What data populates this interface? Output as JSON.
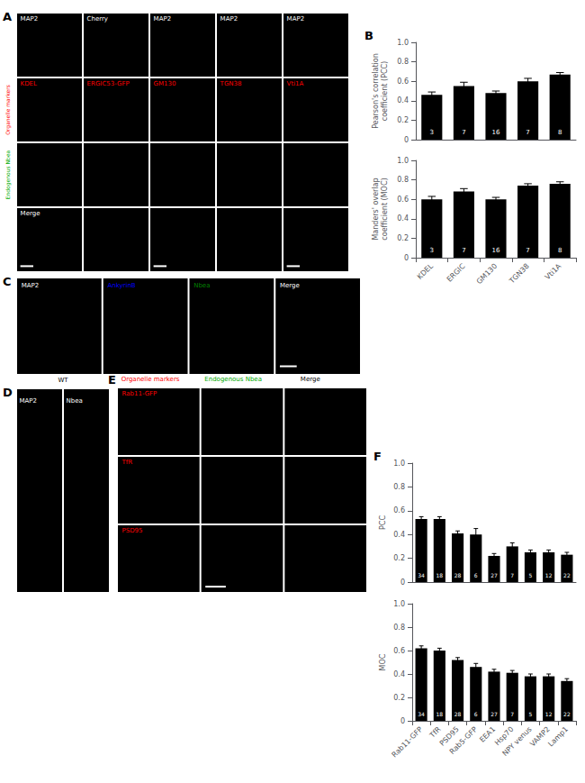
{
  "chart_data": [
    {
      "type": "image",
      "title": "A",
      "annotations": [
        {
          "text": "MAP2",
          "color": "white"
        },
        {
          "text": "Cherry",
          "color": "white"
        },
        {
          "text": "MAP2",
          "color": "white"
        },
        {
          "text": "MAP2",
          "color": "white"
        },
        {
          "text": "MAP2",
          "color": "white"
        },
        {
          "text": "KDEL",
          "color": "red"
        },
        {
          "text": "ERGIC53-GFP",
          "color": "red"
        },
        {
          "text": "GM130",
          "color": "red"
        },
        {
          "text": "TGN38",
          "color": "red"
        },
        {
          "text": "Vti1A",
          "color": "red"
        },
        {
          "text": "Merge",
          "color": "white"
        },
        {
          "text": "Organelle markers",
          "color": "red"
        },
        {
          "text": "Endogenous Nbea",
          "color": "#00aa00"
        }
      ]
    },
    {
      "type": "bar",
      "title": "B",
      "categories": [
        "KDEL",
        "ERGIC",
        "GM130",
        "TGN38",
        "Vti1A"
      ],
      "values": [
        0.46,
        0.55,
        0.48,
        0.6,
        0.67
      ],
      "errors": [
        0.03,
        0.04,
        0.02,
        0.03,
        0.02
      ],
      "n": [
        3,
        7,
        16,
        7,
        8
      ],
      "ylabel": "Pearson's correlation\ncoefficient (PCC)",
      "ylim": [
        0,
        1.0
      ],
      "yticks": [
        0,
        0.2,
        0.4,
        0.6,
        0.8,
        {
          "value": 1.0,
          "label": "1.0"
        }
      ],
      "color": "#000000",
      "grid": false,
      "tick_labels": "y"
    },
    {
      "type": "bar",
      "categories": [
        "KDEL",
        "ERGIC",
        "GM130",
        "TGN38",
        "Vti1A"
      ],
      "values": [
        0.6,
        0.68,
        0.6,
        0.74,
        0.76
      ],
      "errors": [
        0.03,
        0.03,
        0.02,
        0.02,
        0.02
      ],
      "n": [
        3,
        7,
        16,
        7,
        8
      ],
      "ylabel": "Manders' overlap\ncoefficient (MOC)",
      "ylim": [
        0,
        1.0
      ],
      "yticks": [
        0,
        0.2,
        0.4,
        0.6,
        0.8,
        {
          "value": 1.0,
          "label": "1.0"
        }
      ],
      "color": "#000000",
      "grid": false
    },
    {
      "type": "image",
      "title": "C",
      "annotations": [
        {
          "text": "MAP2",
          "color": "white"
        },
        {
          "text": "AnkyrinB",
          "color": "blue"
        },
        {
          "text": "Nbea",
          "color": "green"
        },
        {
          "text": "Merge",
          "color": "white"
        }
      ]
    },
    {
      "type": "image",
      "title": "D",
      "annotations": [
        {
          "text": "WT",
          "color": "black"
        },
        {
          "text": "MAP2",
          "color": "white"
        },
        {
          "text": "Nbea",
          "color": "white"
        }
      ]
    },
    {
      "type": "image",
      "title": "E",
      "annotations": [
        {
          "text": "Organelle markers",
          "color": "red"
        },
        {
          "text": "Endogenous Nbea",
          "color": "#00aa00"
        },
        {
          "text": "Merge",
          "color": "black"
        },
        {
          "text": "Rab11-GFP",
          "color": "red"
        },
        {
          "text": "TfR",
          "color": "red"
        },
        {
          "text": "PSD95",
          "color": "red"
        }
      ]
    },
    {
      "type": "bar",
      "title": "F",
      "categories": [
        "Rab11-GFP",
        "TfR",
        "PSD95",
        "Rab5-GFP",
        "EEA1",
        "Hsp70",
        "NPY venus",
        "VAMP2",
        "Lamp1"
      ],
      "values": [
        0.53,
        0.53,
        0.41,
        0.4,
        0.22,
        0.3,
        0.25,
        0.25,
        0.23
      ],
      "errors": [
        0.02,
        0.02,
        0.02,
        0.05,
        0.02,
        0.03,
        0.02,
        0.02,
        0.02
      ],
      "n": [
        34,
        18,
        28,
        6,
        27,
        7,
        5,
        12,
        22
      ],
      "ylabel": "PCC",
      "ylim": [
        0,
        1.0
      ],
      "yticks": [
        0,
        0.2,
        0.4,
        0.6,
        0.8,
        {
          "value": 1.0,
          "label": "1.0"
        }
      ],
      "color": "#000000",
      "grid": false,
      "tick_labels": "y"
    },
    {
      "type": "bar",
      "categories": [
        "Rab11-GFP",
        "TfR",
        "PSD95",
        "Rab5-GFP",
        "EEA1",
        "Hsp70",
        "NPY venus",
        "VAMP2",
        "Lamp1"
      ],
      "values": [
        0.62,
        0.6,
        0.52,
        0.46,
        0.42,
        0.41,
        0.38,
        0.38,
        0.34
      ],
      "errors": [
        0.02,
        0.02,
        0.02,
        0.03,
        0.02,
        0.02,
        0.02,
        0.02,
        0.02
      ],
      "n": [
        34,
        18,
        28,
        6,
        27,
        7,
        5,
        12,
        22
      ],
      "ylabel": "MOC",
      "ylim": [
        0,
        1.0
      ],
      "yticks": [
        0,
        0.2,
        0.4,
        0.6,
        0.8,
        {
          "value": 1.0,
          "label": "1.0"
        }
      ],
      "color": "#000000",
      "grid": false
    }
  ]
}
